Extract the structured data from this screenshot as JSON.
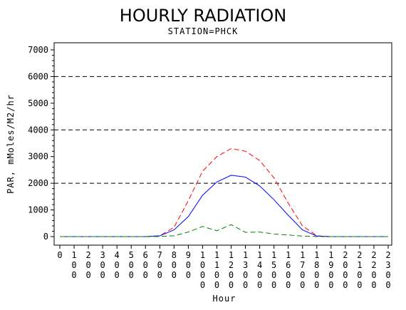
{
  "chart_data": {
    "type": "line",
    "title": "HOURLY RADIATION",
    "subtitle": "STATION=PHCK",
    "xlabel": "Hour",
    "ylabel": "PAR, mMoles/M2/hr",
    "ylim": [
      0,
      7000
    ],
    "yticks": [
      0,
      1000,
      2000,
      3000,
      4000,
      5000,
      6000,
      7000
    ],
    "y_tick_labels": [
      "0",
      "1000",
      "2000",
      "3000",
      "4000",
      "5000",
      "6000",
      "7000"
    ],
    "x": [
      0,
      100,
      200,
      300,
      400,
      500,
      600,
      700,
      800,
      900,
      1000,
      1100,
      1200,
      1300,
      1400,
      1500,
      1600,
      1700,
      1800,
      1900,
      2000,
      2100,
      2200,
      2300
    ],
    "x_tick_labels": [
      "0",
      "100",
      "200",
      "300",
      "400",
      "500",
      "600",
      "700",
      "800",
      "900",
      "1000",
      "1100",
      "1200",
      "1300",
      "1400",
      "1500",
      "1600",
      "1700",
      "1800",
      "1900",
      "2000",
      "2100",
      "2200",
      "2300"
    ],
    "reference_lines": [
      2000,
      4000,
      6000
    ],
    "grid": false,
    "series": [
      {
        "color": "#ff0000",
        "dash": "dashed",
        "values": [
          0,
          0,
          0,
          0,
          0,
          0,
          0,
          30,
          350,
          1350,
          2450,
          3000,
          3300,
          3200,
          2850,
          2200,
          1250,
          400,
          30,
          0,
          0,
          0,
          0,
          0
        ]
      },
      {
        "color": "#0000ff",
        "dash": "solid",
        "values": [
          0,
          0,
          0,
          0,
          0,
          0,
          0,
          30,
          250,
          750,
          1550,
          2050,
          2300,
          2230,
          1900,
          1380,
          800,
          250,
          20,
          0,
          0,
          0,
          0,
          0
        ]
      },
      {
        "color": "#008000",
        "dash": "dashed",
        "values": [
          0,
          0,
          0,
          0,
          0,
          0,
          0,
          5,
          30,
          170,
          380,
          220,
          450,
          160,
          170,
          100,
          60,
          20,
          0,
          0,
          0,
          0,
          0,
          0
        ]
      }
    ]
  }
}
